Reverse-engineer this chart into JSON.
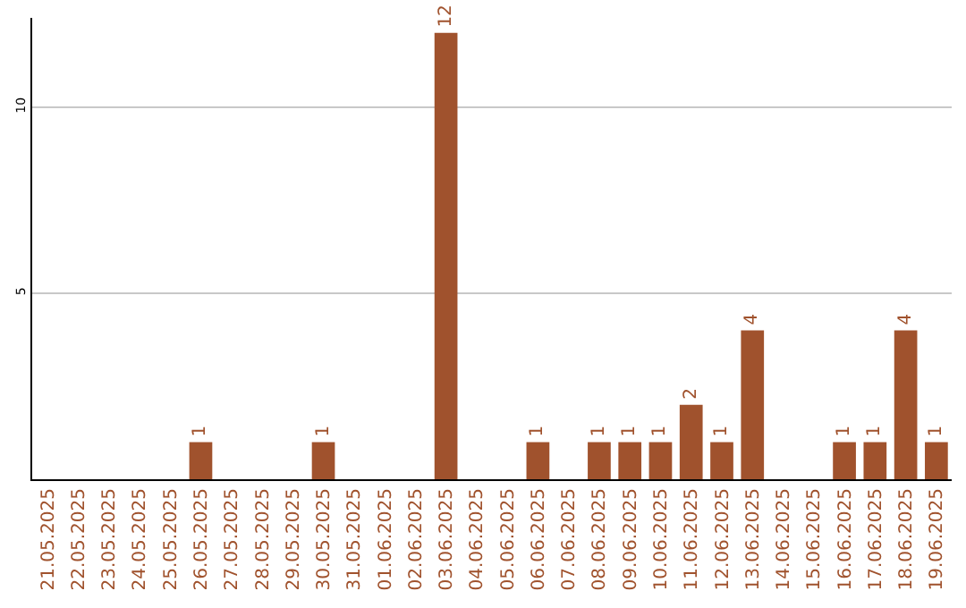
{
  "chart_data": {
    "type": "bar",
    "categories": [
      "21.05.2025",
      "22.05.2025",
      "23.05.2025",
      "24.05.2025",
      "25.05.2025",
      "26.05.2025",
      "27.05.2025",
      "28.05.2025",
      "29.05.2025",
      "30.05.2025",
      "31.05.2025",
      "01.06.2025",
      "02.06.2025",
      "03.06.2025",
      "04.06.2025",
      "05.06.2025",
      "06.06.2025",
      "07.06.2025",
      "08.06.2025",
      "09.06.2025",
      "10.06.2025",
      "11.06.2025",
      "12.06.2025",
      "13.06.2025",
      "14.06.2025",
      "15.06.2025",
      "16.06.2025",
      "17.06.2025",
      "18.06.2025",
      "19.06.2025"
    ],
    "values": [
      0,
      0,
      0,
      0,
      0,
      1,
      0,
      0,
      0,
      1,
      0,
      0,
      0,
      12,
      0,
      0,
      1,
      0,
      1,
      1,
      1,
      2,
      1,
      4,
      0,
      0,
      1,
      1,
      4,
      1
    ],
    "value_labels": [
      null,
      null,
      null,
      null,
      null,
      "1",
      null,
      null,
      null,
      "1",
      null,
      null,
      null,
      "12",
      null,
      null,
      "1",
      null,
      "1",
      "1",
      "1",
      "2",
      "1",
      "4",
      null,
      null,
      "1",
      "1",
      "4",
      "1"
    ],
    "color": "#a0522d",
    "ylim": [
      0,
      12.4
    ],
    "yticks": [
      5,
      10
    ],
    "grid": "y",
    "legend": false
  }
}
